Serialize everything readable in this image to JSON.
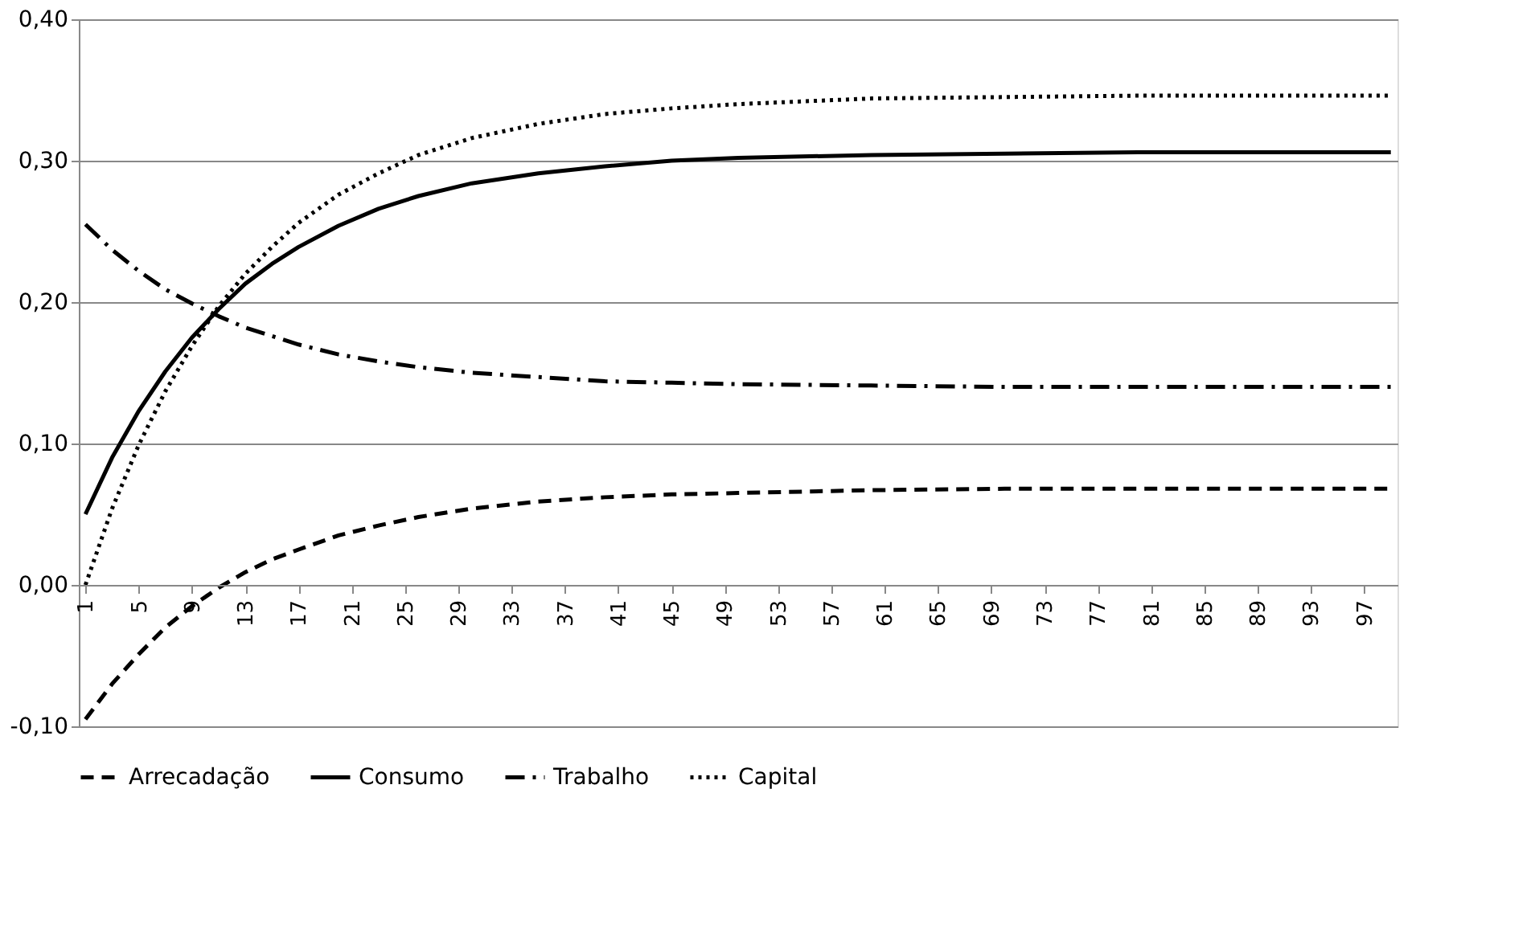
{
  "chart_data": {
    "type": "line",
    "x": [
      1,
      3,
      5,
      7,
      9,
      11,
      13,
      15,
      17,
      20,
      23,
      26,
      30,
      35,
      40,
      45,
      50,
      60,
      70,
      80,
      90,
      99
    ],
    "xlim": [
      0.5,
      99.5
    ],
    "xticks": [
      1,
      5,
      9,
      13,
      17,
      21,
      25,
      29,
      33,
      37,
      41,
      45,
      49,
      53,
      57,
      61,
      65,
      69,
      73,
      77,
      81,
      85,
      89,
      93,
      97
    ],
    "ylim": [
      -0.1,
      0.4
    ],
    "yticks": [
      {
        "value": -0.1,
        "label": "-0,10"
      },
      {
        "value": 0,
        "label": "0,00"
      },
      {
        "value": 0.1,
        "label": "0,10"
      },
      {
        "value": 0.2,
        "label": "0,20"
      },
      {
        "value": 0.3,
        "label": "0,30"
      },
      {
        "value": 0.4,
        "label": "0,40"
      }
    ],
    "grid": "y",
    "legend": "bottom",
    "marker": "none",
    "series": [
      {
        "name": "Arrecadação",
        "color": "#000000",
        "line_style": "dashed",
        "values": [
          -0.095,
          -0.07,
          -0.049,
          -0.03,
          -0.015,
          -0.002,
          0.009,
          0.018,
          0.025,
          0.035,
          0.042,
          0.048,
          0.054,
          0.059,
          0.062,
          0.064,
          0.065,
          0.067,
          0.068,
          0.068,
          0.068,
          0.068
        ]
      },
      {
        "name": "Consumo",
        "color": "#000000",
        "line_style": "solid",
        "values": [
          0.05,
          0.09,
          0.123,
          0.151,
          0.175,
          0.195,
          0.213,
          0.227,
          0.239,
          0.254,
          0.266,
          0.275,
          0.284,
          0.291,
          0.296,
          0.3,
          0.302,
          0.304,
          0.305,
          0.306,
          0.306,
          0.306
        ]
      },
      {
        "name": "Trabalho",
        "color": "#000000",
        "line_style": "dashdot",
        "values": [
          0.255,
          0.237,
          0.222,
          0.209,
          0.199,
          0.19,
          0.182,
          0.176,
          0.17,
          0.163,
          0.158,
          0.154,
          0.15,
          0.147,
          0.144,
          0.143,
          0.142,
          0.141,
          0.14,
          0.14,
          0.14,
          0.14
        ]
      },
      {
        "name": "Capital",
        "color": "#000000",
        "line_style": "dotted",
        "values": [
          0.0,
          0.054,
          0.099,
          0.137,
          0.169,
          0.197,
          0.22,
          0.239,
          0.256,
          0.276,
          0.291,
          0.304,
          0.316,
          0.326,
          0.333,
          0.337,
          0.34,
          0.344,
          0.345,
          0.346,
          0.346,
          0.346
        ]
      }
    ]
  }
}
